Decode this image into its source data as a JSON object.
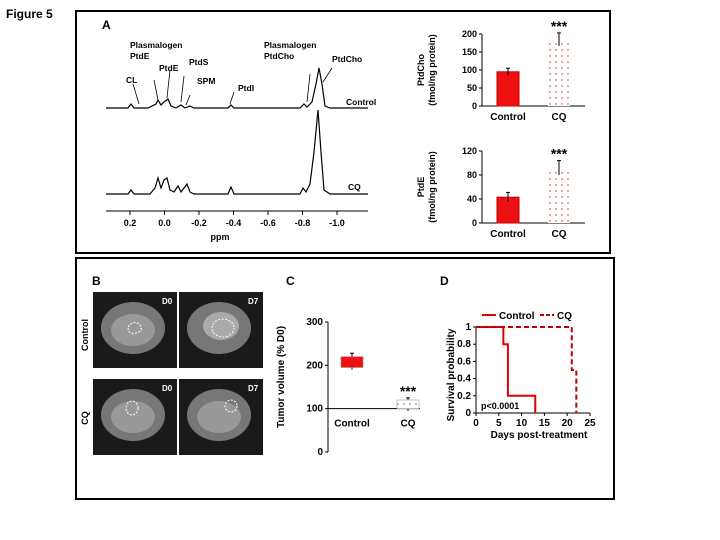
{
  "figure_title": "Figure 5",
  "panelA": {
    "letter": "A",
    "nmr": {
      "peak_labels": [
        "CL",
        "Plasmalogen",
        "PtdE",
        "PtdE",
        "PtdS",
        "SPM",
        "PtdI",
        "Plasmalogen",
        "PtdCho",
        "PtdCho"
      ],
      "trace_labels": [
        "Control",
        "CQ"
      ],
      "axis_ticks": [
        "0.2",
        "0.0",
        "-0.2",
        "-0.4",
        "-0.6",
        "-0.8",
        "-1.0"
      ],
      "xlabel": "ppm"
    }
  },
  "panelB": {
    "letter": "B",
    "row_labels": [
      "Control",
      "CQ"
    ],
    "day_labels": [
      "D0",
      "D7",
      "D0",
      "D7"
    ]
  },
  "panelC": {
    "letter": "C"
  },
  "panelD": {
    "letter": "D"
  },
  "chart_data": [
    {
      "id": "ptdcho",
      "type": "bar",
      "categories": [
        "Control",
        "CQ"
      ],
      "values": [
        95,
        185
      ],
      "errors": [
        10,
        18
      ],
      "ylabel": "PtdCho\n(fmol/ng protein)",
      "ylim": [
        0,
        200
      ],
      "yticks": [
        "0",
        "50",
        "100",
        "150",
        "200"
      ],
      "significance": "***",
      "colors": [
        "#ee1111",
        "#cc2222"
      ]
    },
    {
      "id": "ptde",
      "type": "bar",
      "categories": [
        "Control",
        "CQ"
      ],
      "values": [
        43,
        92
      ],
      "errors": [
        8,
        12
      ],
      "ylabel": "PtdE\n(fmol/ng protein)",
      "ylim": [
        0,
        120
      ],
      "yticks": [
        "0",
        "40",
        "80",
        "120"
      ],
      "significance": "***",
      "colors": [
        "#ee1111",
        "#cc2222"
      ]
    },
    {
      "id": "tumor",
      "type": "bar",
      "categories": [
        "Control",
        "CQ"
      ],
      "box": [
        {
          "min": 190,
          "q1": 195,
          "q3": 220,
          "max": 228
        },
        {
          "min": 95,
          "q1": 100,
          "q3": 120,
          "max": 125
        }
      ],
      "ylabel": "Tumor volume (% D0)",
      "ylim": [
        0,
        300
      ],
      "yticks": [
        "0",
        "100",
        "200",
        "300"
      ],
      "significance": "***",
      "colors": [
        "#ee1111",
        "#dddddd"
      ]
    },
    {
      "id": "survival",
      "type": "line",
      "series": [
        {
          "name": "Control",
          "x": [
            0,
            6,
            6,
            7,
            7,
            13,
            13
          ],
          "y": [
            1,
            1,
            0.8,
            0.8,
            0.2,
            0.2,
            0
          ],
          "style": "solid",
          "color": "#e00000"
        },
        {
          "name": "CQ",
          "x": [
            0,
            21,
            21,
            22,
            22
          ],
          "y": [
            1,
            1,
            0.5,
            0.5,
            0
          ],
          "style": "dashed",
          "color": "#c00000"
        }
      ],
      "xlabel": "Days post-treatment",
      "ylabel": "Survival probability",
      "xlim": [
        0,
        25
      ],
      "ylim": [
        0,
        1
      ],
      "xticks": [
        "0",
        "5",
        "10",
        "15",
        "20",
        "25"
      ],
      "yticks": [
        "0",
        "0.2",
        "0.4",
        "0.6",
        "0.8",
        "1"
      ],
      "annotation": "p<0.0001"
    }
  ]
}
